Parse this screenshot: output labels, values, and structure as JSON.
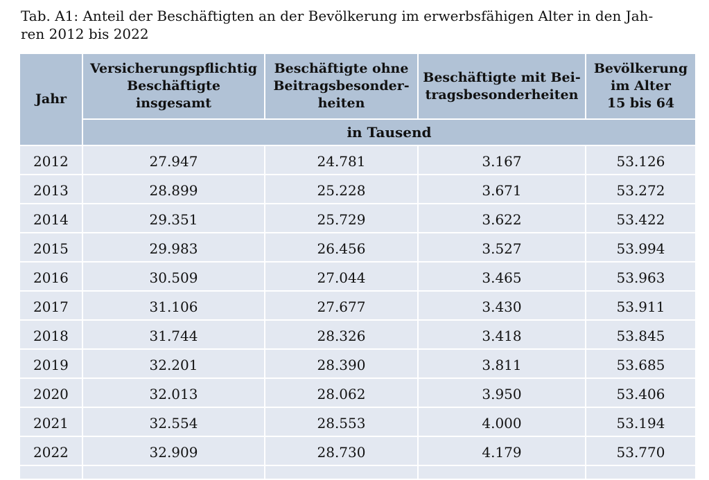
{
  "caption": {
    "line1": "Tab. A1: Anteil der Beschäftigten an der Bevölkerung im erwerbsfähigen Alter in den Jah-",
    "line2": "ren 2012 bis 2022"
  },
  "table": {
    "headers": {
      "year": "Jahr",
      "col1": [
        "Versicherungspflichtig",
        "Beschäftigte",
        "insgesamt"
      ],
      "col2": [
        "Beschäftigte ohne",
        "Beitragsbesonder-",
        "heiten"
      ],
      "col3": [
        "Beschäftigte mit Bei-",
        "tragsbesonderheiten"
      ],
      "col4": [
        "Bevölkerung",
        "im Alter",
        "15 bis 64"
      ],
      "unit": "in Tausend"
    },
    "rows": [
      {
        "year": "2012",
        "total": "27.947",
        "without": "24.781",
        "with": "3.167",
        "population": "53.126"
      },
      {
        "year": "2013",
        "total": "28.899",
        "without": "25.228",
        "with": "3.671",
        "population": "53.272"
      },
      {
        "year": "2014",
        "total": "29.351",
        "without": "25.729",
        "with": "3.622",
        "population": "53.422"
      },
      {
        "year": "2015",
        "total": "29.983",
        "without": "26.456",
        "with": "3.527",
        "population": "53.994"
      },
      {
        "year": "2016",
        "total": "30.509",
        "without": "27.044",
        "with": "3.465",
        "population": "53.963"
      },
      {
        "year": "2017",
        "total": "31.106",
        "without": "27.677",
        "with": "3.430",
        "population": "53.911"
      },
      {
        "year": "2018",
        "total": "31.744",
        "without": "28.326",
        "with": "3.418",
        "population": "53.845"
      },
      {
        "year": "2019",
        "total": "32.201",
        "without": "28.390",
        "with": "3.811",
        "population": "53.685"
      },
      {
        "year": "2020",
        "total": "32.013",
        "without": "28.062",
        "with": "3.950",
        "population": "53.406"
      },
      {
        "year": "2021",
        "total": "32.554",
        "without": "28.553",
        "with": "4.000",
        "population": "53.194"
      },
      {
        "year": "2022",
        "total": "32.909",
        "without": "28.730",
        "with": "4.179",
        "population": "53.770"
      }
    ]
  },
  "colors": {
    "header_bg": "#b1c2d6",
    "cell_bg": "#e3e8f1"
  }
}
